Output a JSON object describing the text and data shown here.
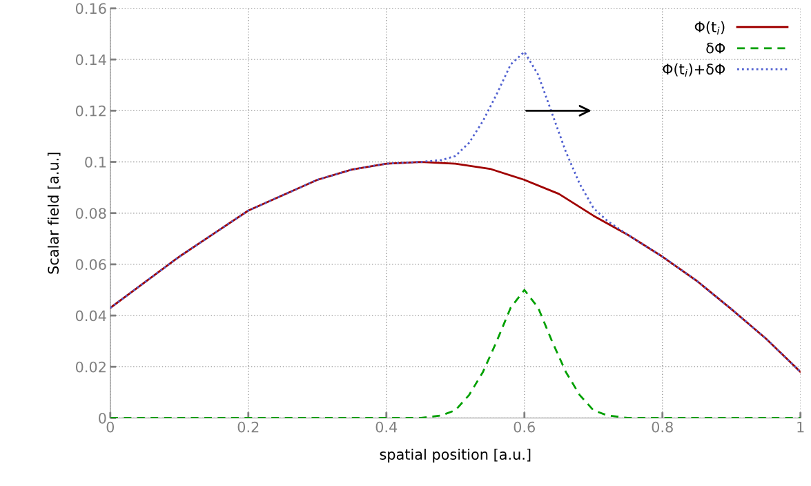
{
  "chart_data": {
    "type": "line",
    "xlabel": "spatial position [a.u.]",
    "ylabel": "Scalar field [a.u.]",
    "xlim": [
      0,
      1
    ],
    "xticks": [
      0,
      0.2,
      0.4,
      0.6,
      0.8,
      1
    ],
    "ylim": [
      0,
      0.16
    ],
    "yticks": [
      0,
      0.02,
      0.04,
      0.06,
      0.08,
      0.1,
      0.12,
      0.14,
      0.16
    ],
    "grid": true,
    "legend": "top right",
    "series": [
      {
        "name": "Φ(t$_{i}$)",
        "color": "#a00000",
        "line_style": "solid",
        "x": [
          0,
          0.05,
          0.1,
          0.15,
          0.2,
          0.25,
          0.3,
          0.35,
          0.4,
          0.45,
          0.5,
          0.55,
          0.6,
          0.65,
          0.7,
          0.75,
          0.8,
          0.85,
          0.9,
          0.95,
          1
        ],
        "values": [
          0.043,
          0.053,
          0.063,
          0.072,
          0.081,
          0.087,
          0.093,
          0.097,
          0.0993,
          0.1,
          0.0993,
          0.0973,
          0.093,
          0.0875,
          0.079,
          0.0715,
          0.063,
          0.0535,
          0.0425,
          0.031,
          0.018
        ]
      },
      {
        "name": "δΦ",
        "color": "#00a000",
        "line_style": "dashed",
        "x": [
          0,
          0.45,
          0.48,
          0.5,
          0.52,
          0.54,
          0.56,
          0.58,
          0.6,
          0.62,
          0.64,
          0.66,
          0.68,
          0.7,
          0.72,
          0.75,
          1
        ],
        "values": [
          0,
          0,
          0.001,
          0.003,
          0.009,
          0.018,
          0.03,
          0.043,
          0.05,
          0.043,
          0.03,
          0.018,
          0.009,
          0.003,
          0.001,
          0,
          0
        ]
      },
      {
        "name": "Φ(t$_{i}$)+δΦ",
        "color": "#5060d0",
        "line_style": "dotted",
        "x": [
          0,
          0.05,
          0.1,
          0.15,
          0.2,
          0.25,
          0.3,
          0.35,
          0.4,
          0.45,
          0.48,
          0.5,
          0.52,
          0.54,
          0.56,
          0.58,
          0.6,
          0.62,
          0.64,
          0.66,
          0.68,
          0.7,
          0.72,
          0.75,
          0.8,
          0.85,
          0.9,
          0.95,
          1
        ],
        "values": [
          0.043,
          0.053,
          0.063,
          0.072,
          0.081,
          0.087,
          0.093,
          0.097,
          0.0993,
          0.1,
          0.1007,
          0.1023,
          0.1075,
          0.116,
          0.1265,
          0.138,
          0.143,
          0.134,
          0.119,
          0.104,
          0.0915,
          0.082,
          0.077,
          0.0715,
          0.063,
          0.0535,
          0.0425,
          0.031,
          0.018
        ]
      }
    ]
  }
}
